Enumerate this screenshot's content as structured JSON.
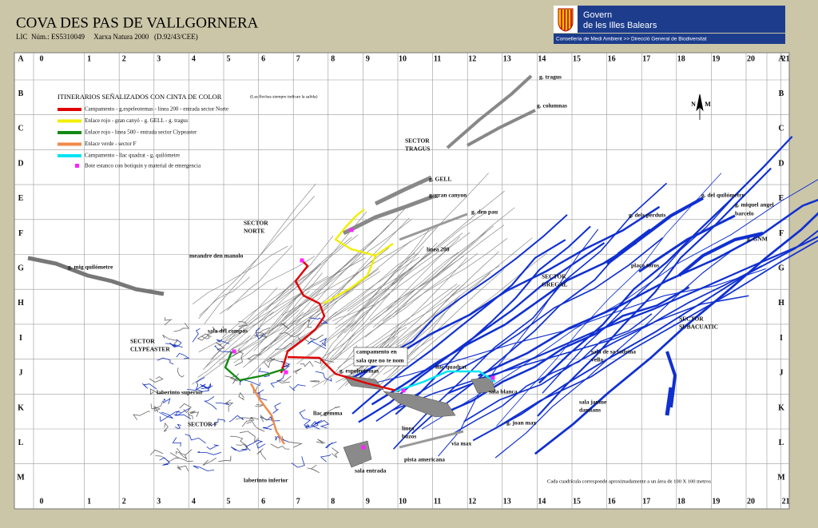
{
  "header": {
    "title": "COVA DES PAS DE VALLGORNERA",
    "subtitle": "LIC  Núm.: ES5310049     Xarxa Natura 2000   (D.92/43/CEE)"
  },
  "logo": {
    "line1": "Govern",
    "line2": "de les Illes Balears",
    "department": "Conselleria de Medi Ambient >> Direcció General de Biodiversitat"
  },
  "grid": {
    "columns": [
      "0",
      "1",
      "2",
      "3",
      "4",
      "5",
      "6",
      "7",
      "8",
      "9",
      "10",
      "11",
      "12",
      "13",
      "14",
      "15",
      "16",
      "17",
      "18",
      "19",
      "20",
      "21"
    ],
    "rows": [
      "A",
      "B",
      "C",
      "D",
      "E",
      "F",
      "G",
      "H",
      "I",
      "J",
      "K",
      "L",
      "M"
    ]
  },
  "legend": {
    "title": "ITINERARIOS SEÑALIZADOS CON CINTA DE COLOR",
    "note": "(Las flechas siempre indican la salida)",
    "items": [
      {
        "label": "Campamento - g.espeleotemas - linea 200 - entrada sector Norte",
        "color": "#e00000"
      },
      {
        "label": "Enlace rojo - gran canyó - g. GELL - g. tragus",
        "color": "#f2ee00"
      },
      {
        "label": "Enlace rojo - linea 500 - entrada sector Clypeaster",
        "color": "#138a13"
      },
      {
        "label": "Enlace verde - sector F",
        "color": "#f08a48"
      },
      {
        "label": "Campamento - llac quadrat - g. quilómetre",
        "color": "#00e4f2"
      }
    ],
    "marker": {
      "label": "Bote estanco con botiquin y material de emergencia",
      "color": "#ff22ff"
    }
  },
  "compass": {
    "north": "N",
    "magnetic": "M"
  },
  "places": [
    "g. tragus",
    "g. columnas",
    "SECTOR",
    "TRAGUS",
    "g. GELL",
    "g. gran canyon",
    "g. den pau",
    "línea 200",
    "SECTOR",
    "NORTE",
    "meandre den manolo",
    "g. mig quilómetre",
    "g. del quilómetre",
    "g. miquel angel",
    "barcelo",
    "g. dels perduts",
    "g. GNM",
    "plaça toros",
    "SECTOR",
    "GREGAL",
    "SECTOR",
    "SUBACUATIC",
    "sala del compàs",
    "SECTOR",
    "CLYPEASTER",
    "campamento en",
    "sala que no te nom",
    "sala de sa fadrina",
    "vella",
    "llac quadrat",
    "g. espeleotemas",
    "sala blanca",
    "laberinto superior",
    "sala jaume",
    "damians",
    "llac gemma",
    "g. joan max",
    "SECTOR F",
    "línea",
    "buzos",
    "via max",
    "pista americana",
    "sala entrada",
    "laberinto inferior"
  ],
  "scale_note": "Cada cuadrícula corresponde aproximadamente a un área de 100 X 100 metros"
}
